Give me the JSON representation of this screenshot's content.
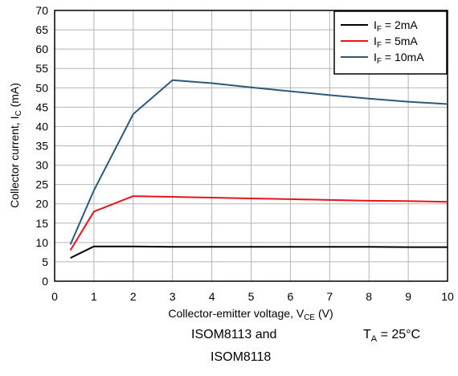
{
  "chart_data": {
    "type": "line",
    "title": "",
    "xlabel": {
      "main": "Collector-emitter voltage, V",
      "sub": "CE",
      "unit": " (V)"
    },
    "ylabel": {
      "main": "Collector current, I",
      "sub": "C",
      "unit": " (mA)"
    },
    "xlim": [
      0,
      10
    ],
    "ylim": [
      0,
      70
    ],
    "xticks": [
      0,
      1,
      2,
      3,
      4,
      5,
      6,
      7,
      8,
      9,
      10
    ],
    "yticks": [
      0,
      5,
      10,
      15,
      20,
      25,
      30,
      35,
      40,
      45,
      50,
      55,
      60,
      65,
      70
    ],
    "grid": true,
    "legend_position": "top-right",
    "series": [
      {
        "name": "I_F = 2mA",
        "name_main": "I",
        "name_sub": "F",
        "name_rest": " = 2mA",
        "color": "#000000",
        "x": [
          0.4,
          1,
          2,
          3,
          4,
          5,
          6,
          7,
          8,
          9,
          10
        ],
        "y": [
          6,
          9,
          9,
          8.9,
          8.9,
          8.9,
          8.9,
          8.9,
          8.9,
          8.8,
          8.8
        ]
      },
      {
        "name": "I_F = 5mA",
        "name_main": "I",
        "name_sub": "F",
        "name_rest": " = 5mA",
        "color": "#e8141b",
        "x": [
          0.4,
          1,
          2,
          3,
          4,
          5,
          6,
          7,
          8,
          9,
          10
        ],
        "y": [
          8,
          18,
          22,
          21.8,
          21.6,
          21.4,
          21.2,
          21,
          20.8,
          20.7,
          20.5
        ]
      },
      {
        "name": "I_F = 10mA",
        "name_main": "I",
        "name_sub": "F",
        "name_rest": " = 10mA",
        "color": "#2b5a78",
        "x": [
          0.4,
          1,
          2,
          3,
          4,
          5,
          6,
          7,
          8,
          9,
          10
        ],
        "y": [
          9.5,
          23.5,
          43.2,
          52,
          51.2,
          50.1,
          49.1,
          48.1,
          47.2,
          46.4,
          45.8
        ]
      }
    ]
  },
  "caption": {
    "device_line1": "ISOM8113 and",
    "device_line2": "ISOM8118",
    "temp_main": "T",
    "temp_sub": "A",
    "temp_rest": " = 25°C"
  }
}
